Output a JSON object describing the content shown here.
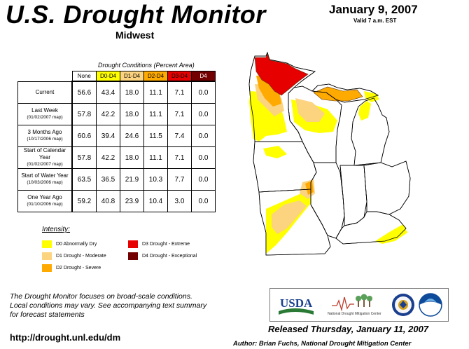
{
  "header": {
    "title": "U.S. Drought Monitor",
    "region": "Midwest",
    "date": "January 9, 2007",
    "valid": "Valid 7 a.m. EST"
  },
  "table": {
    "caption": "Drought Conditions (Percent Area)",
    "columns": [
      "None",
      "D0-D4",
      "D1-D4",
      "D2-D4",
      "D3-D4",
      "D4"
    ],
    "column_colors": [
      "#ffffff",
      "#ffff00",
      "#fcd37f",
      "#ffaa00",
      "#e60000",
      "#730000"
    ],
    "rows": [
      {
        "label": "Current",
        "sub": "",
        "values": [
          "56.6",
          "43.4",
          "18.0",
          "11.1",
          "7.1",
          "0.0"
        ]
      },
      {
        "label": "Last Week",
        "sub": "(01/02/2007 map)",
        "values": [
          "57.8",
          "42.2",
          "18.0",
          "11.1",
          "7.1",
          "0.0"
        ]
      },
      {
        "label": "3 Months Ago",
        "sub": "(10/17/2006 map)",
        "values": [
          "60.6",
          "39.4",
          "24.6",
          "11.5",
          "7.4",
          "0.0"
        ]
      },
      {
        "label": "Start of Calendar Year",
        "sub": "(01/02/2007 map)",
        "values": [
          "57.8",
          "42.2",
          "18.0",
          "11.1",
          "7.1",
          "0.0"
        ]
      },
      {
        "label": "Start of Water Year",
        "sub": "(10/03/2006 map)",
        "values": [
          "63.5",
          "36.5",
          "21.9",
          "10.3",
          "7.7",
          "0.0"
        ]
      },
      {
        "label": "One Year Ago",
        "sub": "(01/10/2006 map)",
        "values": [
          "59.2",
          "40.8",
          "23.9",
          "10.4",
          "3.0",
          "0.0"
        ]
      }
    ]
  },
  "legend": {
    "title": "Intensity:",
    "items": [
      {
        "label": "D0 Abnormally Dry",
        "color": "#ffff00"
      },
      {
        "label": "D1 Drought - Moderate",
        "color": "#fcd37f"
      },
      {
        "label": "D2 Drought - Severe",
        "color": "#ffaa00"
      },
      {
        "label": "D3 Drought - Extreme",
        "color": "#e60000"
      },
      {
        "label": "D4 Drought - Exceptional",
        "color": "#730000"
      }
    ]
  },
  "footer": {
    "blurb_1": "The Drought Monitor focuses on broad-scale conditions.",
    "blurb_2": "Local conditions may vary. See accompanying text summary",
    "blurb_3": "for forecast statements",
    "url": "http://drought.unl.edu/dm",
    "released": "Released Thursday, January 11, 2007",
    "author": "Author: Brian Fuchs, National Drought Mitigation Center"
  },
  "logos": {
    "usda": "USDA",
    "ndmc": "National Drought Mitigation Center"
  }
}
